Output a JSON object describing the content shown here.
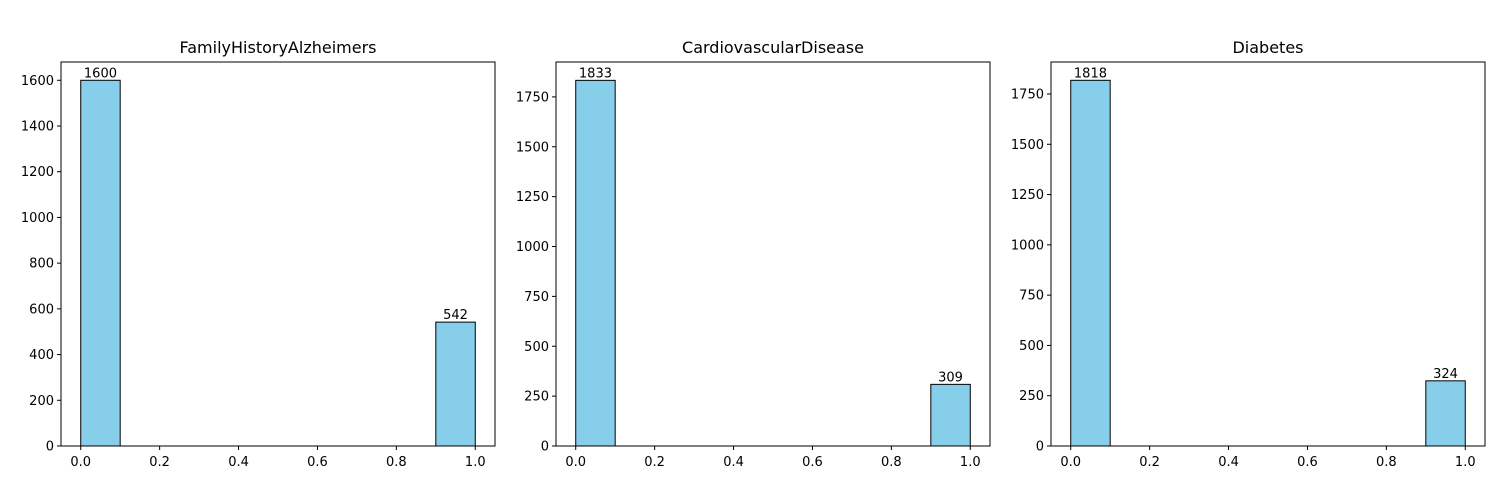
{
  "chart_data": [
    {
      "type": "bar",
      "title": "FamilyHistoryAlzheimers",
      "xlabel": "",
      "ylabel": "",
      "bins": [
        {
          "x0": 0.0,
          "x1": 0.1,
          "value": 1600
        },
        {
          "x0": 0.9,
          "x1": 1.0,
          "value": 542
        }
      ],
      "xlim": [
        -0.05,
        1.05
      ],
      "ylim": [
        0,
        1680
      ],
      "xticks": [
        0.0,
        0.2,
        0.4,
        0.6,
        0.8,
        1.0
      ],
      "xtick_labels": [
        "0.0",
        "0.2",
        "0.4",
        "0.6",
        "0.8",
        "1.0"
      ],
      "yticks": [
        0,
        200,
        400,
        600,
        800,
        1000,
        1200,
        1400,
        1600
      ],
      "ytick_labels": [
        "0",
        "200",
        "400",
        "600",
        "800",
        "1000",
        "1200",
        "1400",
        "1600"
      ],
      "bar_color": "#87ceeb",
      "edge_color": "#000000",
      "grid": false
    },
    {
      "type": "bar",
      "title": "CardiovascularDisease",
      "xlabel": "",
      "ylabel": "",
      "bins": [
        {
          "x0": 0.0,
          "x1": 0.1,
          "value": 1833
        },
        {
          "x0": 0.9,
          "x1": 1.0,
          "value": 309
        }
      ],
      "xlim": [
        -0.05,
        1.05
      ],
      "ylim": [
        0,
        1925
      ],
      "xticks": [
        0.0,
        0.2,
        0.4,
        0.6,
        0.8,
        1.0
      ],
      "xtick_labels": [
        "0.0",
        "0.2",
        "0.4",
        "0.6",
        "0.8",
        "1.0"
      ],
      "yticks": [
        0,
        250,
        500,
        750,
        1000,
        1250,
        1500,
        1750
      ],
      "ytick_labels": [
        "0",
        "250",
        "500",
        "750",
        "1000",
        "1250",
        "1500",
        "1750"
      ],
      "bar_color": "#87ceeb",
      "edge_color": "#000000",
      "grid": false
    },
    {
      "type": "bar",
      "title": "Diabetes",
      "xlabel": "",
      "ylabel": "",
      "bins": [
        {
          "x0": 0.0,
          "x1": 0.1,
          "value": 1818
        },
        {
          "x0": 0.9,
          "x1": 1.0,
          "value": 324
        }
      ],
      "xlim": [
        -0.05,
        1.05
      ],
      "ylim": [
        0,
        1909
      ],
      "xticks": [
        0.0,
        0.2,
        0.4,
        0.6,
        0.8,
        1.0
      ],
      "xtick_labels": [
        "0.0",
        "0.2",
        "0.4",
        "0.6",
        "0.8",
        "1.0"
      ],
      "yticks": [
        0,
        250,
        500,
        750,
        1000,
        1250,
        1500,
        1750
      ],
      "ytick_labels": [
        "0",
        "250",
        "500",
        "750",
        "1000",
        "1250",
        "1500",
        "1750"
      ],
      "bar_color": "#87ceeb",
      "edge_color": "#000000",
      "grid": false
    }
  ]
}
